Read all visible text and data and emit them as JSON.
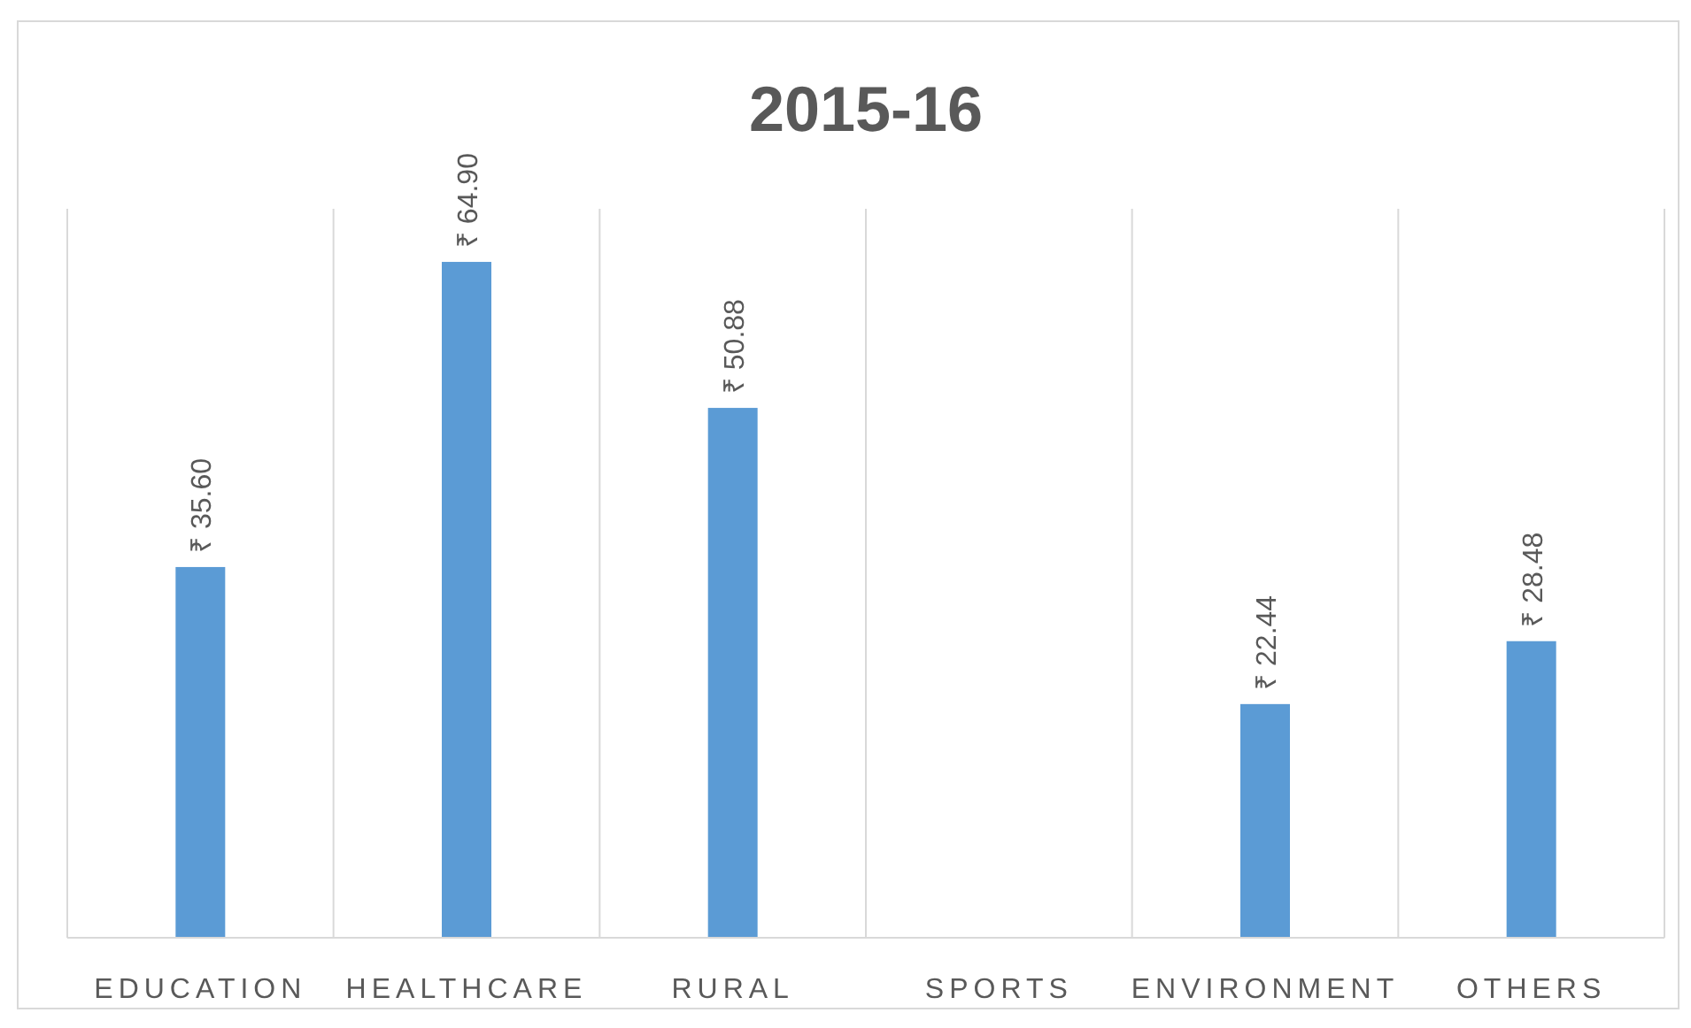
{
  "chart_data": {
    "type": "bar",
    "title": "2015-16",
    "categories": [
      "EDUCATION",
      "HEALTHCARE",
      "RURAL",
      "SPORTS",
      "ENVIRONMENT",
      "OTHERS"
    ],
    "values": [
      35.6,
      64.9,
      50.88,
      null,
      22.44,
      28.48
    ],
    "value_labels": [
      "₹ 35.60",
      "₹ 64.90",
      "₹ 50.88",
      null,
      "₹ 22.44",
      "₹ 28.48"
    ],
    "color": "#5b9bd5",
    "ylim": [
      0,
      70
    ],
    "grid": "x",
    "tick_labels": "x"
  }
}
